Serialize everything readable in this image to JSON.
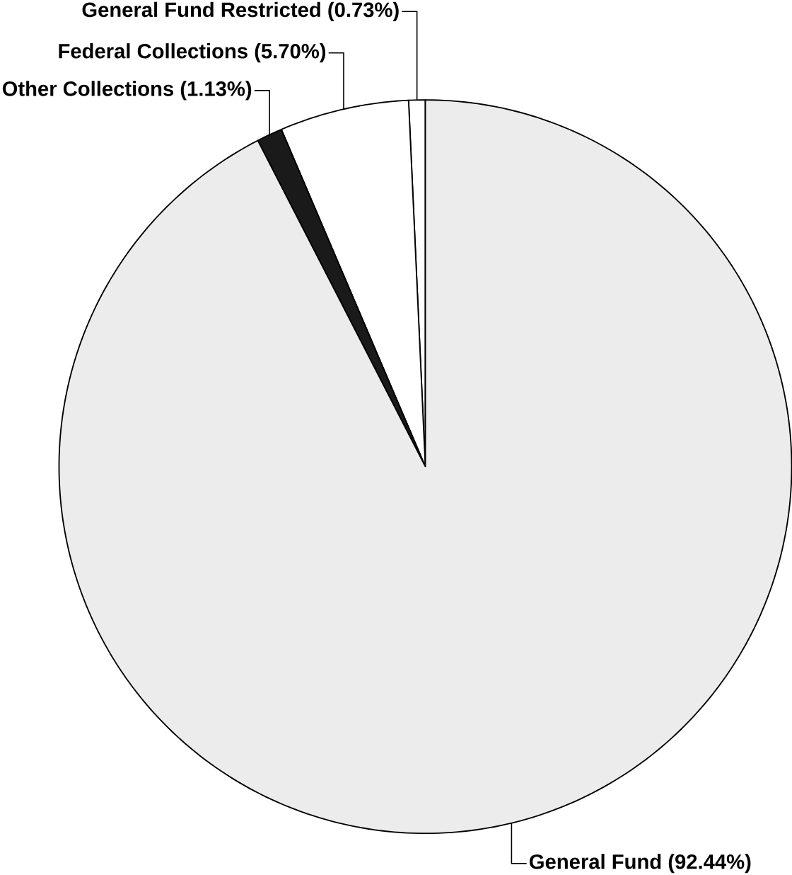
{
  "chart_data": {
    "type": "pie",
    "categories": [
      "General Fund Restricted",
      "Federal Collections",
      "Other Collections",
      "General Fund"
    ],
    "values": [
      0.73,
      5.7,
      1.13,
      92.44
    ],
    "value_labels": [
      "(0.73%)",
      "(5.70%)",
      "(1.13%)",
      "(92.44%)"
    ],
    "colors": [
      "#ffffff",
      "#ffffff",
      "#1a1a1a",
      "#ececec"
    ]
  }
}
